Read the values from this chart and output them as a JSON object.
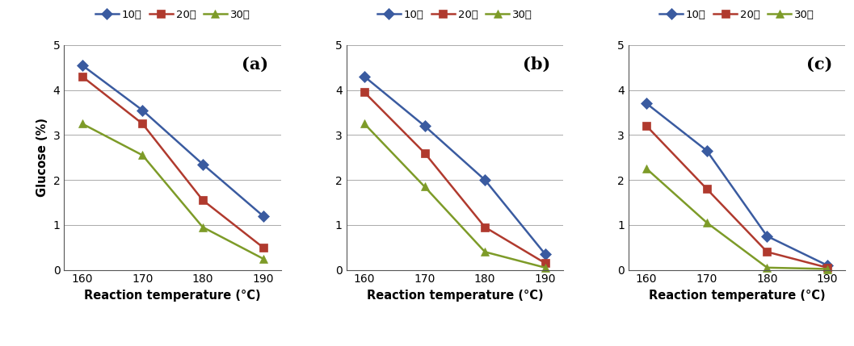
{
  "x": [
    160,
    170,
    180,
    190
  ],
  "panels": [
    {
      "label": "(a)",
      "series": [
        {
          "name": "10분",
          "color": "#3A5BA0",
          "marker": "D",
          "values": [
            4.55,
            3.55,
            2.35,
            1.2
          ]
        },
        {
          "name": "20분",
          "color": "#B03A2E",
          "marker": "s",
          "values": [
            4.3,
            3.25,
            1.55,
            0.5
          ]
        },
        {
          "name": "30분",
          "color": "#7D9B28",
          "marker": "^",
          "values": [
            3.25,
            2.55,
            0.95,
            0.25
          ]
        }
      ]
    },
    {
      "label": "(b)",
      "series": [
        {
          "name": "10분",
          "color": "#3A5BA0",
          "marker": "D",
          "values": [
            4.3,
            3.2,
            2.0,
            0.35
          ]
        },
        {
          "name": "20분",
          "color": "#B03A2E",
          "marker": "s",
          "values": [
            3.95,
            2.6,
            0.95,
            0.15
          ]
        },
        {
          "name": "30분",
          "color": "#7D9B28",
          "marker": "^",
          "values": [
            3.25,
            1.85,
            0.4,
            0.05
          ]
        }
      ]
    },
    {
      "label": "(c)",
      "series": [
        {
          "name": "10분",
          "color": "#3A5BA0",
          "marker": "D",
          "values": [
            3.7,
            2.65,
            0.75,
            0.1
          ]
        },
        {
          "name": "20분",
          "color": "#B03A2E",
          "marker": "s",
          "values": [
            3.2,
            1.8,
            0.4,
            0.05
          ]
        },
        {
          "name": "30분",
          "color": "#7D9B28",
          "marker": "^",
          "values": [
            2.25,
            1.05,
            0.05,
            0.02
          ]
        }
      ]
    }
  ],
  "ylabel": "Glucose (%)",
  "xlabel": "Reaction temperature (°C)",
  "ylim": [
    0,
    5
  ],
  "yticks": [
    0,
    1,
    2,
    3,
    4,
    5
  ],
  "xticks": [
    160,
    170,
    180,
    190
  ],
  "legend_fontsize": 9.5,
  "axis_label_fontsize": 10.5,
  "tick_fontsize": 10,
  "panel_label_fontsize": 15,
  "line_width": 1.8,
  "marker_size": 7
}
